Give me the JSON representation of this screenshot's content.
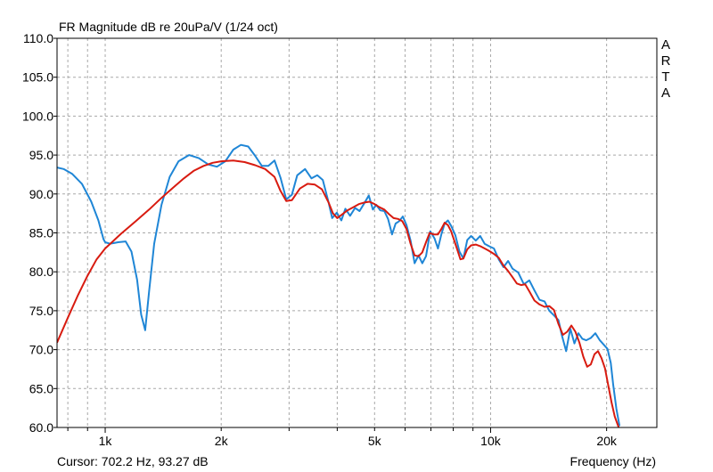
{
  "chart_data": {
    "type": "line",
    "title": "FR Magnitude dB re 20uPa/V (1/24 oct)",
    "xlabel": "Frequency (Hz)",
    "ylabel": "",
    "xscale": "log",
    "xlim": [
      750,
      27000
    ],
    "ylim": [
      60,
      110
    ],
    "grid": true,
    "y_ticks": [
      "110.0",
      "105.0",
      "100.0",
      "95.0",
      "90.0",
      "85.0",
      "80.0",
      "75.0",
      "70.0",
      "65.0",
      "60.0"
    ],
    "x_tick_labels": [
      {
        "x": 1000,
        "label": "1k"
      },
      {
        "x": 2000,
        "label": "2k"
      },
      {
        "x": 5000,
        "label": "5k"
      },
      {
        "x": 10000,
        "label": "10k"
      },
      {
        "x": 20000,
        "label": "20k"
      }
    ],
    "colors": {
      "blue": "#1f86d6",
      "red": "#d81b10",
      "grid": "#a8a8a8"
    },
    "series": [
      {
        "color": "blue",
        "points": [
          [
            750,
            93.4
          ],
          [
            780,
            93.2
          ],
          [
            820,
            92.6
          ],
          [
            870,
            91.3
          ],
          [
            920,
            89.0
          ],
          [
            960,
            86.6
          ],
          [
            990,
            84.2
          ],
          [
            1000,
            83.8
          ],
          [
            1030,
            83.6
          ],
          [
            1080,
            83.8
          ],
          [
            1130,
            83.9
          ],
          [
            1170,
            82.6
          ],
          [
            1210,
            79.0
          ],
          [
            1240,
            74.5
          ],
          [
            1270,
            72.5
          ],
          [
            1300,
            77.5
          ],
          [
            1340,
            83.6
          ],
          [
            1400,
            88.6
          ],
          [
            1470,
            92.2
          ],
          [
            1550,
            94.2
          ],
          [
            1650,
            95.0
          ],
          [
            1750,
            94.6
          ],
          [
            1850,
            93.8
          ],
          [
            1950,
            93.5
          ],
          [
            2050,
            94.2
          ],
          [
            2150,
            95.7
          ],
          [
            2250,
            96.3
          ],
          [
            2350,
            96.1
          ],
          [
            2450,
            94.9
          ],
          [
            2550,
            93.6
          ],
          [
            2650,
            93.6
          ],
          [
            2750,
            94.3
          ],
          [
            2850,
            92.1
          ],
          [
            2950,
            89.3
          ],
          [
            3050,
            89.9
          ],
          [
            3150,
            92.4
          ],
          [
            3300,
            93.2
          ],
          [
            3430,
            92.0
          ],
          [
            3550,
            92.4
          ],
          [
            3670,
            91.8
          ],
          [
            3790,
            89.1
          ],
          [
            3880,
            86.9
          ],
          [
            3990,
            87.6
          ],
          [
            4100,
            86.6
          ],
          [
            4200,
            88.1
          ],
          [
            4320,
            87.2
          ],
          [
            4450,
            88.2
          ],
          [
            4570,
            87.8
          ],
          [
            4700,
            88.8
          ],
          [
            4830,
            89.8
          ],
          [
            4950,
            88.0
          ],
          [
            5050,
            88.6
          ],
          [
            5170,
            87.9
          ],
          [
            5300,
            87.8
          ],
          [
            5420,
            86.8
          ],
          [
            5550,
            84.8
          ],
          [
            5670,
            86.2
          ],
          [
            5790,
            86.5
          ],
          [
            5920,
            87.1
          ],
          [
            6050,
            86.0
          ],
          [
            6200,
            84.0
          ],
          [
            6350,
            81.1
          ],
          [
            6500,
            82.1
          ],
          [
            6650,
            81.1
          ],
          [
            6800,
            82.0
          ],
          [
            6970,
            85.2
          ],
          [
            7150,
            84.3
          ],
          [
            7300,
            83.0
          ],
          [
            7450,
            84.8
          ],
          [
            7600,
            86.2
          ],
          [
            7750,
            86.6
          ],
          [
            7900,
            85.9
          ],
          [
            8100,
            84.7
          ],
          [
            8300,
            82.6
          ],
          [
            8500,
            81.7
          ],
          [
            8700,
            84.1
          ],
          [
            8900,
            84.6
          ],
          [
            9150,
            84.0
          ],
          [
            9400,
            84.6
          ],
          [
            9650,
            83.6
          ],
          [
            9900,
            83.3
          ],
          [
            10200,
            83.0
          ],
          [
            10500,
            81.6
          ],
          [
            10800,
            80.6
          ],
          [
            11100,
            81.4
          ],
          [
            11400,
            80.4
          ],
          [
            11800,
            79.9
          ],
          [
            12200,
            78.4
          ],
          [
            12600,
            78.9
          ],
          [
            13000,
            77.6
          ],
          [
            13400,
            76.4
          ],
          [
            13800,
            76.2
          ],
          [
            14200,
            75.0
          ],
          [
            14600,
            74.4
          ],
          [
            15000,
            73.8
          ],
          [
            15300,
            71.9
          ],
          [
            15700,
            69.8
          ],
          [
            16100,
            72.7
          ],
          [
            16500,
            70.8
          ],
          [
            16900,
            72.1
          ],
          [
            17300,
            71.4
          ],
          [
            17700,
            71.2
          ],
          [
            18200,
            71.5
          ],
          [
            18700,
            72.1
          ],
          [
            19200,
            71.2
          ],
          [
            19700,
            70.6
          ],
          [
            20100,
            70.1
          ],
          [
            20500,
            68.3
          ],
          [
            20800,
            65.5
          ],
          [
            21200,
            62.4
          ],
          [
            21600,
            60.2
          ]
        ]
      },
      {
        "color": "red",
        "points": [
          [
            750,
            70.9
          ],
          [
            800,
            74.1
          ],
          [
            850,
            77.0
          ],
          [
            900,
            79.5
          ],
          [
            950,
            81.6
          ],
          [
            1000,
            83.0
          ],
          [
            1100,
            84.9
          ],
          [
            1200,
            86.5
          ],
          [
            1300,
            88.0
          ],
          [
            1400,
            89.5
          ],
          [
            1500,
            90.8
          ],
          [
            1600,
            92.0
          ],
          [
            1700,
            93.0
          ],
          [
            1800,
            93.6
          ],
          [
            1900,
            94.0
          ],
          [
            2000,
            94.2
          ],
          [
            2150,
            94.3
          ],
          [
            2300,
            94.1
          ],
          [
            2450,
            93.7
          ],
          [
            2600,
            93.2
          ],
          [
            2750,
            92.2
          ],
          [
            2850,
            90.4
          ],
          [
            2950,
            89.1
          ],
          [
            3050,
            89.2
          ],
          [
            3200,
            90.7
          ],
          [
            3350,
            91.3
          ],
          [
            3500,
            91.2
          ],
          [
            3650,
            90.6
          ],
          [
            3800,
            88.9
          ],
          [
            3900,
            87.5
          ],
          [
            4000,
            86.9
          ],
          [
            4100,
            87.3
          ],
          [
            4250,
            87.9
          ],
          [
            4400,
            88.3
          ],
          [
            4550,
            88.7
          ],
          [
            4700,
            88.9
          ],
          [
            4850,
            89.0
          ],
          [
            5000,
            88.7
          ],
          [
            5150,
            88.3
          ],
          [
            5300,
            88.0
          ],
          [
            5450,
            87.4
          ],
          [
            5600,
            86.9
          ],
          [
            5750,
            86.8
          ],
          [
            5900,
            86.5
          ],
          [
            6050,
            85.5
          ],
          [
            6200,
            83.6
          ],
          [
            6350,
            82.1
          ],
          [
            6500,
            82.0
          ],
          [
            6650,
            82.5
          ],
          [
            6800,
            83.8
          ],
          [
            6950,
            85.0
          ],
          [
            7100,
            84.8
          ],
          [
            7300,
            84.8
          ],
          [
            7450,
            85.5
          ],
          [
            7600,
            86.3
          ],
          [
            7750,
            86.0
          ],
          [
            7900,
            85.2
          ],
          [
            8050,
            84.0
          ],
          [
            8200,
            82.8
          ],
          [
            8350,
            81.6
          ],
          [
            8500,
            81.7
          ],
          [
            8700,
            82.9
          ],
          [
            8900,
            83.4
          ],
          [
            9150,
            83.5
          ],
          [
            9400,
            83.3
          ],
          [
            9650,
            83.0
          ],
          [
            9900,
            82.7
          ],
          [
            10200,
            82.3
          ],
          [
            10500,
            81.8
          ],
          [
            10800,
            80.8
          ],
          [
            11100,
            80.1
          ],
          [
            11400,
            79.3
          ],
          [
            11700,
            78.5
          ],
          [
            12000,
            78.3
          ],
          [
            12300,
            78.4
          ],
          [
            12600,
            77.5
          ],
          [
            13000,
            76.3
          ],
          [
            13400,
            75.8
          ],
          [
            13800,
            75.5
          ],
          [
            14200,
            75.6
          ],
          [
            14600,
            75.1
          ],
          [
            15000,
            73.3
          ],
          [
            15400,
            71.9
          ],
          [
            15800,
            72.3
          ],
          [
            16200,
            73.1
          ],
          [
            16600,
            72.3
          ],
          [
            17000,
            70.9
          ],
          [
            17400,
            69.1
          ],
          [
            17800,
            67.8
          ],
          [
            18200,
            68.1
          ],
          [
            18600,
            69.4
          ],
          [
            19000,
            69.8
          ],
          [
            19400,
            68.9
          ],
          [
            19800,
            67.6
          ],
          [
            20200,
            65.4
          ],
          [
            20600,
            63.2
          ],
          [
            21000,
            61.4
          ],
          [
            21500,
            60.0
          ]
        ]
      }
    ]
  },
  "header": {
    "title": "FR Magnitude dB re 20uPa/V (1/24 oct)",
    "brand": "A\nR\nT\nA"
  },
  "footer": {
    "cursor": "Cursor: 702.2 Hz, 93.27 dB",
    "xlabel": "Frequency (Hz)"
  }
}
